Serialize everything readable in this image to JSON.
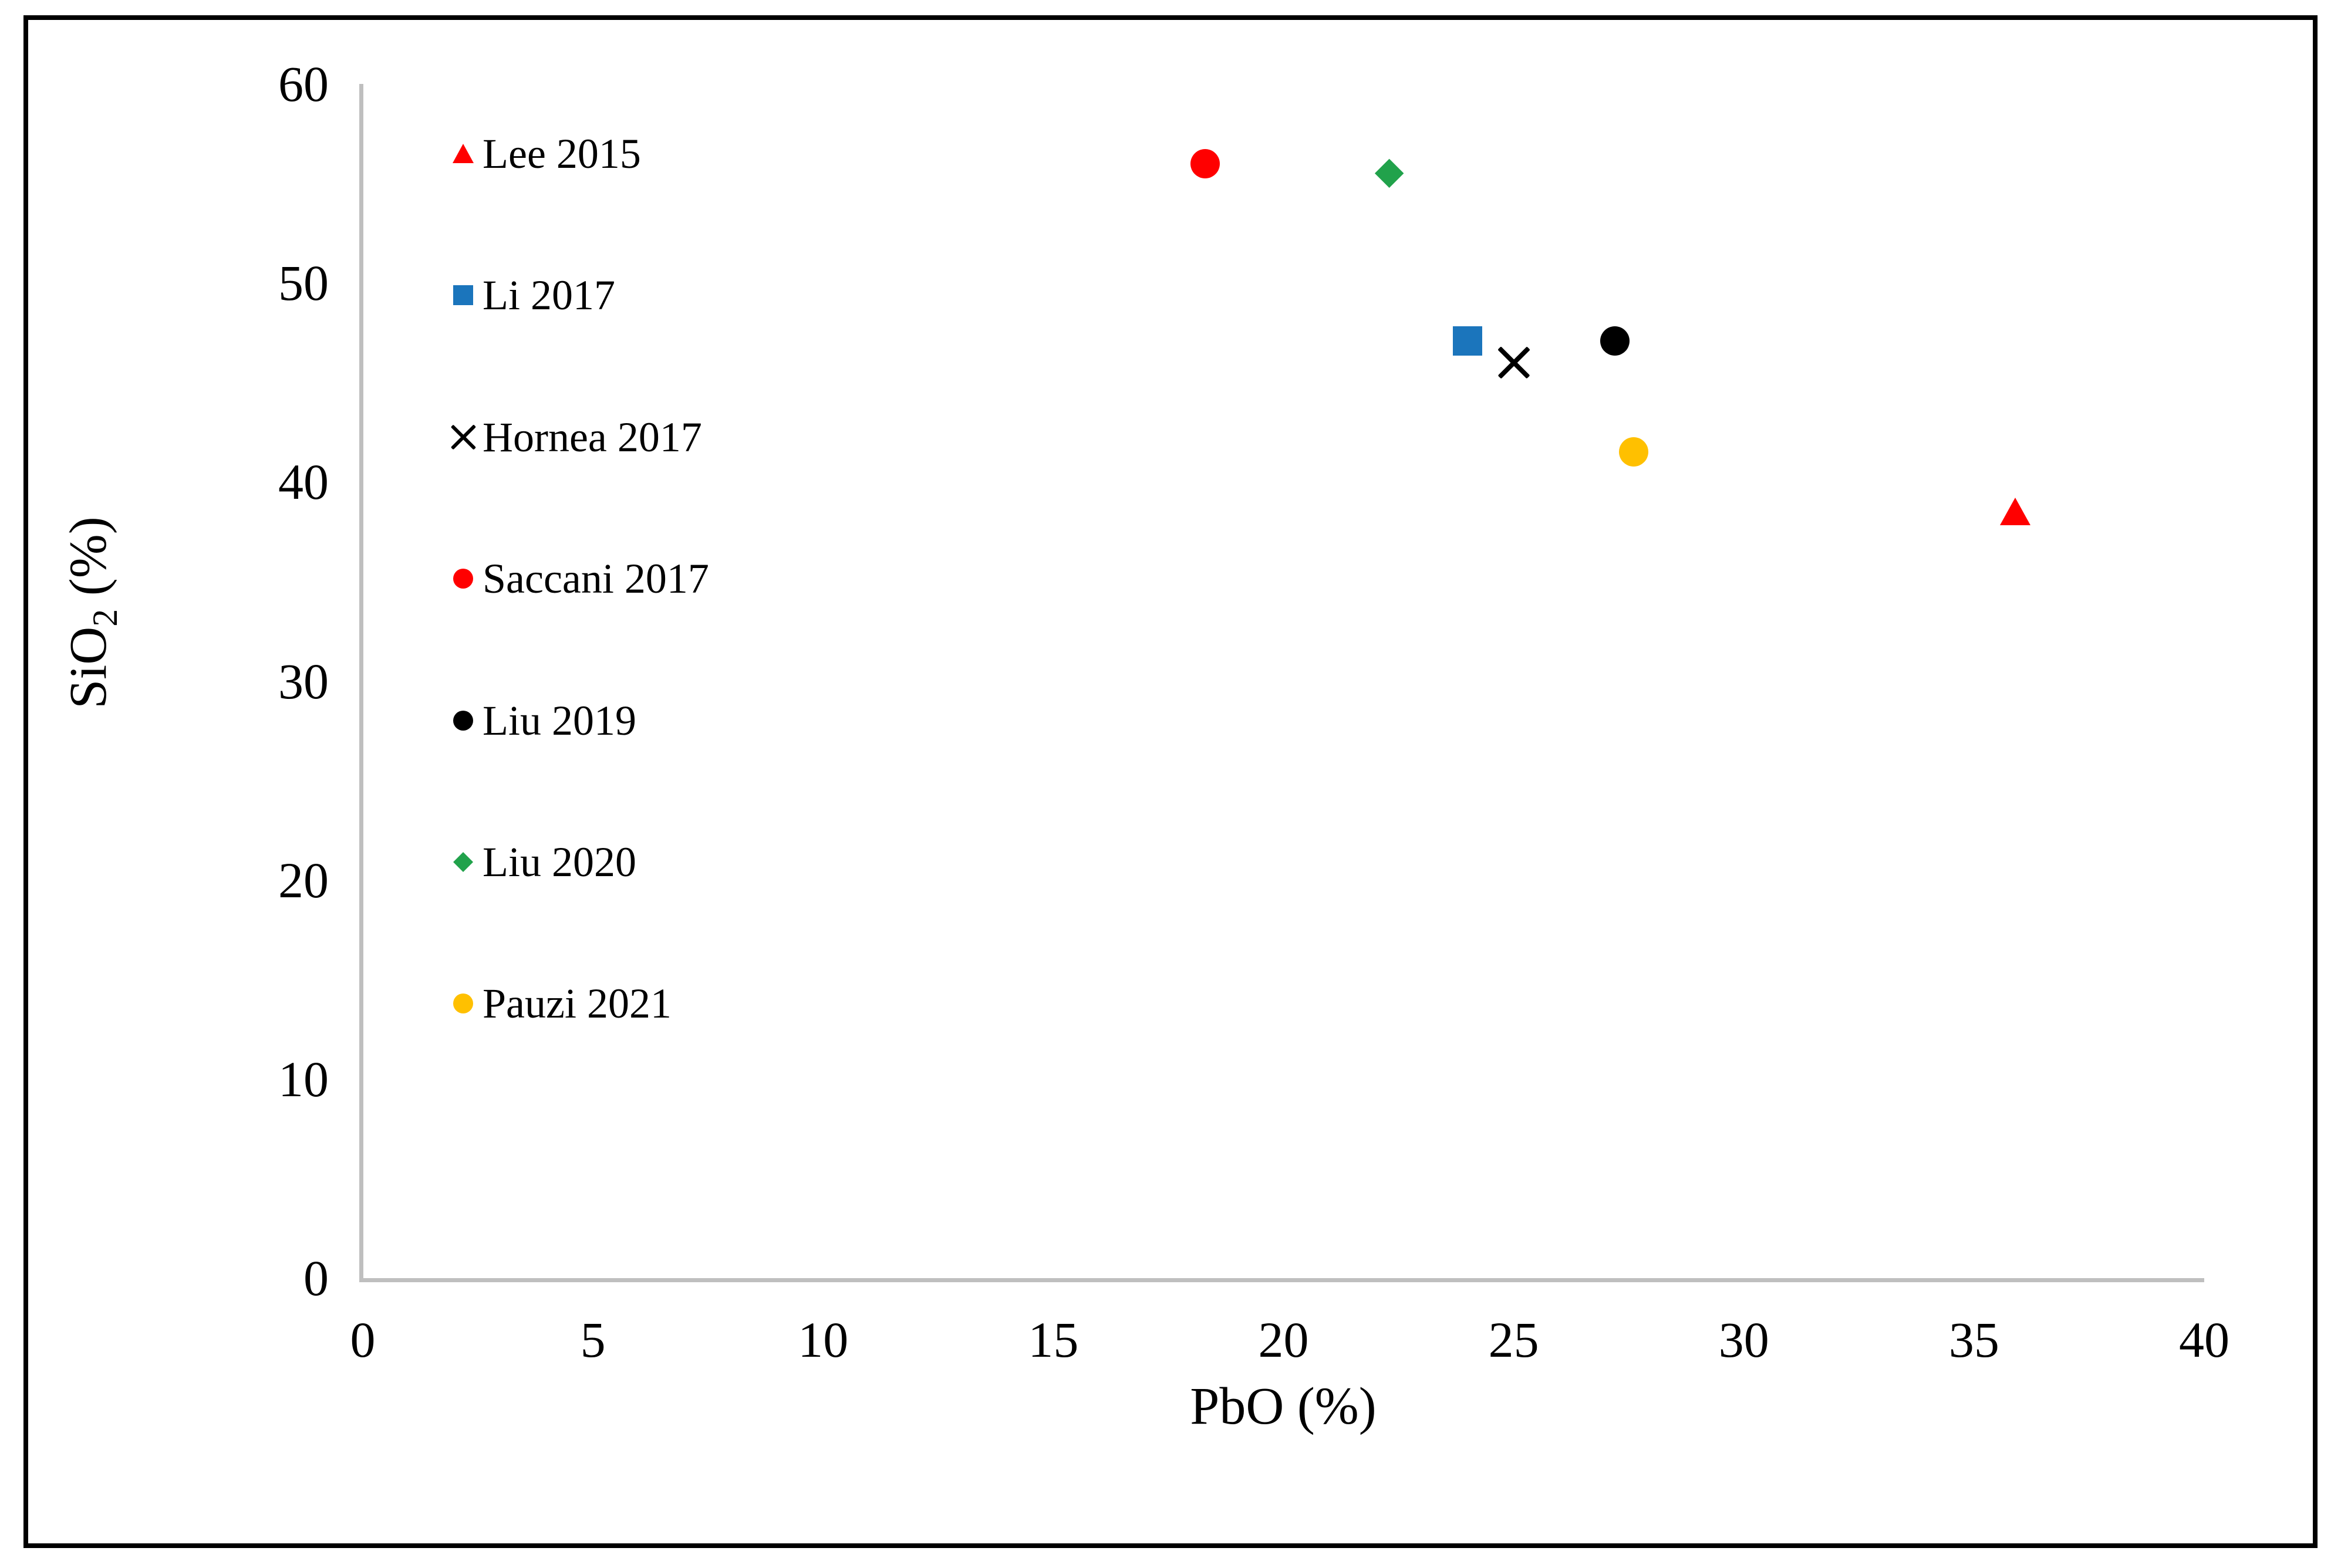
{
  "figure": {
    "background": "#FFFFFF",
    "border_color": "#000000",
    "axis_line_color": "#BFBFBF",
    "text_color": "#000000"
  },
  "chart_data": {
    "type": "scatter",
    "title": "",
    "xlabel": "PbO (%)",
    "ylabel": "SiO2 (%)",
    "ylabel_parts": {
      "main": "SiO",
      "sub": "2",
      "rest": " (%)"
    },
    "xlim": [
      0,
      40
    ],
    "ylim": [
      0,
      60
    ],
    "x_ticks": [
      0,
      5,
      10,
      15,
      20,
      25,
      30,
      35,
      40
    ],
    "y_ticks": [
      0,
      10,
      20,
      30,
      40,
      50,
      60
    ],
    "grid": false,
    "legend_position": "inside-upper-left",
    "series": [
      {
        "name": "Lee 2015",
        "marker": "triangle",
        "color": "#FF0000",
        "points": [
          [
            35.9,
            38.5
          ]
        ]
      },
      {
        "name": "Li 2017",
        "marker": "square",
        "color": "#1B75BC",
        "points": [
          [
            24.0,
            47.1
          ]
        ]
      },
      {
        "name": "Hornea 2017",
        "marker": "x",
        "color": "#000000",
        "points": [
          [
            25.0,
            46.0
          ]
        ]
      },
      {
        "name": "Saccani 2017",
        "marker": "circle",
        "color": "#FF0000",
        "points": [
          [
            18.3,
            56.0
          ]
        ]
      },
      {
        "name": "Liu 2019",
        "marker": "circle",
        "color": "#000000",
        "points": [
          [
            27.2,
            47.1
          ]
        ]
      },
      {
        "name": "Liu 2020",
        "marker": "diamond",
        "color": "#21A24B",
        "points": [
          [
            22.3,
            55.5
          ]
        ]
      },
      {
        "name": "Pauzi 2021",
        "marker": "circle",
        "color": "#FFC000",
        "points": [
          [
            27.6,
            41.5
          ]
        ]
      }
    ]
  }
}
